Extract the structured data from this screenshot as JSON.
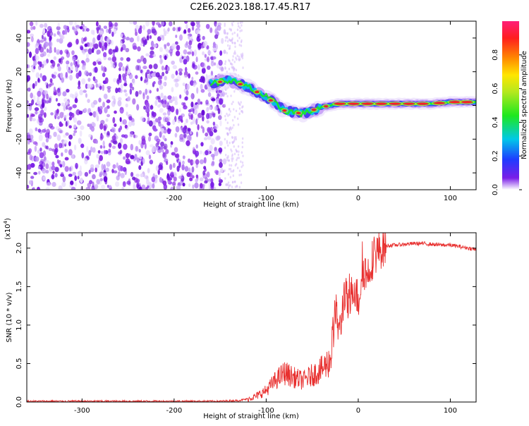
{
  "figure_title": "C2E6.2023.188.17.45.R17",
  "colors": {
    "signal_line": "#e8302f",
    "scatter_dots": "#7a1ee8",
    "axis": "#000000"
  },
  "chart_data": [
    {
      "type": "heatmap",
      "xlabel": "Height of straight line (km)",
      "ylabel": "Frequency (Hz)",
      "xlim": [
        -360,
        128
      ],
      "ylim": [
        -50,
        50
      ],
      "x_ticks": [
        -300,
        -200,
        -100,
        0,
        100
      ],
      "y_ticks": [
        -40,
        -20,
        0,
        20,
        40
      ],
      "noise_region": {
        "x_range": [
          -360,
          -145
        ],
        "freq_range": [
          -50,
          50
        ]
      },
      "signal_trace": {
        "x": [
          -160,
          -140,
          -120,
          -100,
          -80,
          -60,
          -40,
          -20,
          0,
          20,
          40,
          60,
          80,
          100,
          128
        ],
        "freq": [
          13,
          15,
          11,
          5,
          -3,
          -5,
          -1,
          1,
          1,
          1,
          1,
          1,
          1,
          2,
          2
        ]
      },
      "colorbar": {
        "label": "Normalized spectral amplitude",
        "range": [
          0.0,
          1.0
        ],
        "ticks": [
          0.0,
          0.2,
          0.4,
          0.6,
          0.8
        ]
      }
    },
    {
      "type": "line",
      "xlabel": "Height of straight line (km)",
      "ylabel": "SNR (10 * v/v)",
      "y_multiplier_label": "(x10",
      "y_multiplier_exp": "4",
      "y_multiplier_close": ")",
      "xlim": [
        -360,
        128
      ],
      "ylim": [
        0.0,
        2.2
      ],
      "x_ticks": [
        -300,
        -200,
        -100,
        0,
        100
      ],
      "y_ticks": [
        "0.0",
        "0.5",
        "1.0",
        "1.5",
        "2.0"
      ],
      "series": [
        {
          "name": "SNR",
          "x": [
            -360,
            -150,
            -130,
            -120,
            -110,
            -100,
            -90,
            -80,
            -70,
            -60,
            -50,
            -40,
            -30,
            -25,
            -20,
            -15,
            -10,
            -5,
            0,
            5,
            10,
            15,
            20,
            25,
            30,
            40,
            50,
            60,
            70,
            80,
            90,
            100,
            110,
            120,
            128
          ],
          "values": [
            0.01,
            0.01,
            0.02,
            0.04,
            0.08,
            0.15,
            0.28,
            0.38,
            0.32,
            0.28,
            0.35,
            0.42,
            0.55,
            1.2,
            0.9,
            1.45,
            1.2,
            1.55,
            1.3,
            1.75,
            1.65,
            1.85,
            1.95,
            2.0,
            2.03,
            2.04,
            2.05,
            2.06,
            2.06,
            2.05,
            2.04,
            2.04,
            2.02,
            2.0,
            1.98
          ]
        }
      ]
    }
  ]
}
